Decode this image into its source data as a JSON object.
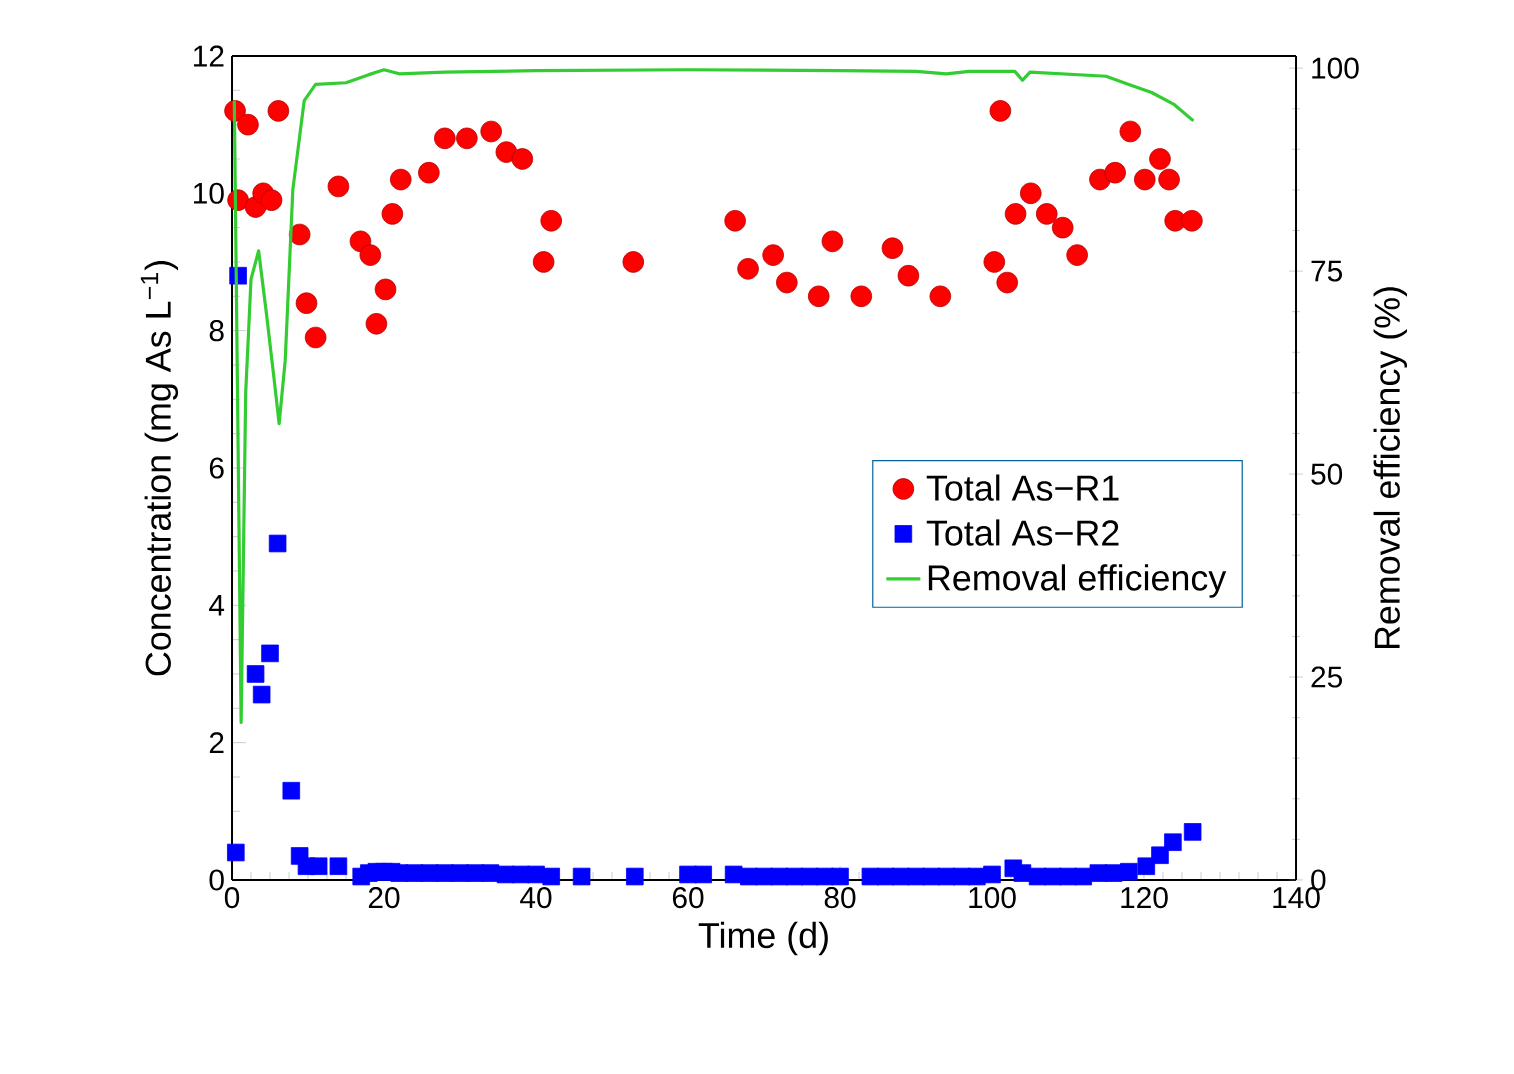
{
  "chart_data": {
    "type": "scatter",
    "xlabel": "Time (d)",
    "ylabel": "Concentration (mg As L$^{−1}$)",
    "y2label": "Removal efficiency (%)",
    "xlim": [
      0,
      140
    ],
    "xticks": [
      0,
      20,
      40,
      60,
      80,
      100,
      120,
      140
    ],
    "ylim": [
      0,
      12
    ],
    "yticks": [
      0,
      2,
      4,
      6,
      8,
      10,
      12
    ],
    "y2lim": [
      0,
      101.5
    ],
    "y2ticks": [
      0,
      25,
      50,
      75,
      100
    ],
    "legend": "right",
    "grid": false,
    "series": [
      {
        "name": "Total As−R1",
        "marker": "circle",
        "color": "#ff0000",
        "x": [
          0.4,
          2.1,
          6.1,
          0.8,
          3.1,
          4.1,
          5.2,
          8.9,
          9.8,
          11.0,
          14.0,
          16.9,
          18.2,
          19.0,
          20.2,
          21.1,
          22.2,
          25.9,
          28.0,
          30.9,
          34.1,
          36.1,
          38.2,
          41.0,
          42.0,
          52.8,
          66.2,
          67.9,
          71.2,
          73.0,
          77.2,
          79.0,
          82.8,
          86.9,
          89.0,
          93.2,
          100.3,
          101.1,
          102.0,
          103.1,
          105.1,
          107.2,
          109.3,
          111.2,
          114.2,
          116.2,
          118.2,
          120.1,
          122.1,
          123.3,
          124.1,
          126.3
        ],
        "values": [
          11.2,
          11.0,
          11.2,
          9.9,
          9.8,
          10.0,
          9.9,
          9.4,
          8.4,
          7.9,
          10.1,
          9.3,
          9.1,
          8.1,
          8.6,
          9.7,
          10.2,
          10.3,
          10.8,
          10.8,
          10.9,
          10.6,
          10.5,
          9.0,
          9.6,
          9.0,
          9.6,
          8.9,
          9.1,
          8.7,
          8.5,
          9.3,
          8.5,
          9.2,
          8.8,
          8.5,
          9.0,
          11.2,
          8.7,
          9.7,
          10.0,
          9.7,
          9.5,
          9.1,
          10.2,
          10.3,
          10.9,
          10.2,
          10.5,
          10.2,
          9.6,
          9.6
        ]
      },
      {
        "name": "Total As−R2",
        "marker": "square",
        "color": "#0000ff",
        "x": [
          0.5,
          0.8,
          3.1,
          3.9,
          5.0,
          6.0,
          7.8,
          8.9,
          9.8,
          11.4,
          14.0,
          17,
          18,
          19,
          20,
          21,
          22,
          24,
          26,
          28,
          30,
          32,
          34,
          36,
          38,
          40,
          42,
          46,
          53,
          60,
          62,
          66,
          68,
          70,
          72,
          74,
          76,
          78,
          80,
          84,
          86,
          88,
          90,
          92,
          94,
          96,
          98,
          100,
          102.8,
          104,
          106,
          108,
          110,
          112,
          114,
          116,
          118,
          120.3,
          122.1,
          123.8,
          126.4
        ],
        "values": [
          0.4,
          8.8,
          3.0,
          2.7,
          3.3,
          4.9,
          1.3,
          0.35,
          0.2,
          0.2,
          0.2,
          0.05,
          0.1,
          0.12,
          0.12,
          0.12,
          0.1,
          0.1,
          0.1,
          0.1,
          0.1,
          0.1,
          0.1,
          0.08,
          0.08,
          0.08,
          0.05,
          0.05,
          0.05,
          0.08,
          0.08,
          0.08,
          0.05,
          0.05,
          0.05,
          0.05,
          0.05,
          0.05,
          0.05,
          0.05,
          0.05,
          0.05,
          0.05,
          0.05,
          0.05,
          0.05,
          0.05,
          0.08,
          0.17,
          0.1,
          0.05,
          0.05,
          0.05,
          0.05,
          0.1,
          0.1,
          0.12,
          0.2,
          0.36,
          0.55,
          0.7
        ]
      },
      {
        "name": "Removal efficiency",
        "type": "line",
        "axis": "y2",
        "marker": "none",
        "line_style": "solid",
        "color": "#33cc33",
        "x": [
          0.3,
          1.2,
          1.8,
          2.5,
          3.5,
          4.5,
          5.5,
          6.2,
          7.0,
          8.0,
          9.5,
          11,
          15,
          18,
          20,
          22,
          28,
          40,
          60,
          80,
          90,
          94,
          97,
          103,
          104,
          105,
          115,
          118,
          121,
          124,
          126.5
        ],
        "values": [
          96,
          19.4,
          60,
          74,
          77.5,
          70,
          62,
          56.2,
          64,
          85,
          96,
          98,
          98.2,
          99.2,
          99.8,
          99.3,
          99.5,
          99.7,
          99.8,
          99.7,
          99.6,
          99.3,
          99.6,
          99.6,
          98.5,
          99.5,
          99,
          98,
          97,
          95.5,
          93.5
        ]
      }
    ]
  }
}
